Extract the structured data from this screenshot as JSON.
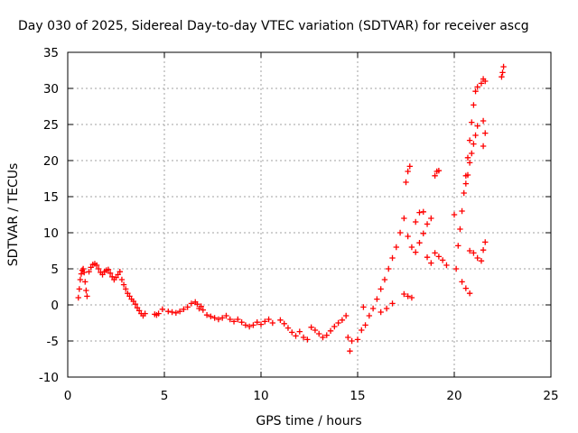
{
  "chart_data": {
    "type": "scatter",
    "title": "Day 030 of 2025, Sidereal Day-to-day VTEC variation (SDTVAR) for receiver ascg",
    "xlabel": "GPS time / hours",
    "ylabel": "SDTVAR / TECUs",
    "xlim": [
      0,
      25
    ],
    "ylim": [
      -10,
      35
    ],
    "xticks": [
      "0",
      "5",
      "10",
      "15",
      "20",
      "25"
    ],
    "yticks": [
      "-10",
      "-5",
      "0",
      "5",
      "10",
      "15",
      "20",
      "25",
      "30",
      "35"
    ],
    "grid": true,
    "marker": "+",
    "series": [
      {
        "name": "SDTVAR",
        "color": "#ff0000",
        "points": [
          [
            0.55,
            1.0
          ],
          [
            0.6,
            2.2
          ],
          [
            0.65,
            3.5
          ],
          [
            0.7,
            4.3
          ],
          [
            0.75,
            4.8
          ],
          [
            0.8,
            5.0
          ],
          [
            0.85,
            4.5
          ],
          [
            0.9,
            3.2
          ],
          [
            0.95,
            2.0
          ],
          [
            1.0,
            1.2
          ],
          [
            1.1,
            4.6
          ],
          [
            1.2,
            5.2
          ],
          [
            1.3,
            5.6
          ],
          [
            1.4,
            5.7
          ],
          [
            1.5,
            5.5
          ],
          [
            1.6,
            5.0
          ],
          [
            1.7,
            4.5
          ],
          [
            1.8,
            4.2
          ],
          [
            1.9,
            4.6
          ],
          [
            2.0,
            4.8
          ],
          [
            2.1,
            4.9
          ],
          [
            2.2,
            4.4
          ],
          [
            2.3,
            3.9
          ],
          [
            2.4,
            3.5
          ],
          [
            2.5,
            3.8
          ],
          [
            2.6,
            4.2
          ],
          [
            2.7,
            4.6
          ],
          [
            2.8,
            3.5
          ],
          [
            2.9,
            2.8
          ],
          [
            3.0,
            2.2
          ],
          [
            3.1,
            1.6
          ],
          [
            3.2,
            1.2
          ],
          [
            3.3,
            0.8
          ],
          [
            3.4,
            0.5
          ],
          [
            3.5,
            0.1
          ],
          [
            3.6,
            -0.4
          ],
          [
            3.7,
            -0.8
          ],
          [
            3.8,
            -1.2
          ],
          [
            3.9,
            -1.5
          ],
          [
            4.0,
            -1.2
          ],
          [
            4.5,
            -1.3
          ],
          [
            4.6,
            -1.4
          ],
          [
            4.7,
            -1.2
          ],
          [
            4.9,
            -0.6
          ],
          [
            5.2,
            -0.9
          ],
          [
            5.4,
            -1.0
          ],
          [
            5.6,
            -1.1
          ],
          [
            5.8,
            -0.9
          ],
          [
            6.0,
            -0.6
          ],
          [
            6.2,
            -0.3
          ],
          [
            6.4,
            0.2
          ],
          [
            6.6,
            0.4
          ],
          [
            6.7,
            0.1
          ],
          [
            6.8,
            -0.5
          ],
          [
            6.9,
            -0.2
          ],
          [
            7.0,
            -0.7
          ],
          [
            7.2,
            -1.4
          ],
          [
            7.4,
            -1.6
          ],
          [
            7.6,
            -1.8
          ],
          [
            7.8,
            -2.0
          ],
          [
            8.0,
            -1.8
          ],
          [
            8.2,
            -1.5
          ],
          [
            8.4,
            -2.0
          ],
          [
            8.6,
            -2.3
          ],
          [
            8.8,
            -2.0
          ],
          [
            9.0,
            -2.4
          ],
          [
            9.2,
            -2.8
          ],
          [
            9.4,
            -3.0
          ],
          [
            9.6,
            -2.8
          ],
          [
            9.8,
            -2.4
          ],
          [
            10.0,
            -2.7
          ],
          [
            10.2,
            -2.3
          ],
          [
            10.4,
            -2.0
          ],
          [
            10.6,
            -2.5
          ],
          [
            11.0,
            -2.1
          ],
          [
            11.2,
            -2.6
          ],
          [
            11.4,
            -3.2
          ],
          [
            11.6,
            -3.8
          ],
          [
            11.8,
            -4.3
          ],
          [
            12.0,
            -3.7
          ],
          [
            12.2,
            -4.5
          ],
          [
            12.4,
            -4.8
          ],
          [
            12.6,
            -3.1
          ],
          [
            12.8,
            -3.5
          ],
          [
            13.0,
            -4.0
          ],
          [
            13.2,
            -4.5
          ],
          [
            13.4,
            -4.2
          ],
          [
            13.6,
            -3.6
          ],
          [
            13.8,
            -3.0
          ],
          [
            14.0,
            -2.5
          ],
          [
            14.2,
            -2.1
          ],
          [
            14.4,
            -1.5
          ],
          [
            14.5,
            -4.5
          ],
          [
            14.6,
            -6.4
          ],
          [
            14.7,
            -5.0
          ],
          [
            15.0,
            -4.8
          ],
          [
            15.2,
            -3.5
          ],
          [
            15.3,
            -0.3
          ],
          [
            15.4,
            -2.8
          ],
          [
            15.6,
            -1.5
          ],
          [
            15.8,
            -0.5
          ],
          [
            16.0,
            0.8
          ],
          [
            16.2,
            2.2
          ],
          [
            16.4,
            3.5
          ],
          [
            16.6,
            5.0
          ],
          [
            16.8,
            6.5
          ],
          [
            17.0,
            8.0
          ],
          [
            17.2,
            10.0
          ],
          [
            17.4,
            12.0
          ],
          [
            17.5,
            17.0
          ],
          [
            17.6,
            18.5
          ],
          [
            17.7,
            19.2
          ],
          [
            17.6,
            9.5
          ],
          [
            17.8,
            8.0
          ],
          [
            18.0,
            11.5
          ],
          [
            18.2,
            12.8
          ],
          [
            18.4,
            12.9
          ],
          [
            18.0,
            7.3
          ],
          [
            18.2,
            8.6
          ],
          [
            18.4,
            9.9
          ],
          [
            18.6,
            11.2
          ],
          [
            18.8,
            12.0
          ],
          [
            18.6,
            6.6
          ],
          [
            18.8,
            5.8
          ],
          [
            19.0,
            7.2
          ],
          [
            19.2,
            6.7
          ],
          [
            19.4,
            6.2
          ],
          [
            19.6,
            5.5
          ],
          [
            19.0,
            17.9
          ],
          [
            19.1,
            18.5
          ],
          [
            19.2,
            18.6
          ],
          [
            20.0,
            12.5
          ],
          [
            20.1,
            5.0
          ],
          [
            20.2,
            8.2
          ],
          [
            20.3,
            10.5
          ],
          [
            20.4,
            13.0
          ],
          [
            20.5,
            15.5
          ],
          [
            20.6,
            17.9
          ],
          [
            20.7,
            20.4
          ],
          [
            20.8,
            22.8
          ],
          [
            20.9,
            25.3
          ],
          [
            21.0,
            27.7
          ],
          [
            21.1,
            29.6
          ],
          [
            21.2,
            30.2
          ],
          [
            20.6,
            16.8
          ],
          [
            20.7,
            18.0
          ],
          [
            20.8,
            19.7
          ],
          [
            20.9,
            21.0
          ],
          [
            21.0,
            22.3
          ],
          [
            21.1,
            23.5
          ],
          [
            21.2,
            24.8
          ],
          [
            20.8,
            7.5
          ],
          [
            21.0,
            7.2
          ],
          [
            21.2,
            6.5
          ],
          [
            21.4,
            6.1
          ],
          [
            21.5,
            7.6
          ],
          [
            21.6,
            8.7
          ],
          [
            21.4,
            30.7
          ],
          [
            21.5,
            31.3
          ],
          [
            21.6,
            31.0
          ],
          [
            21.5,
            25.5
          ],
          [
            21.6,
            23.8
          ],
          [
            21.5,
            22.0
          ],
          [
            20.4,
            3.2
          ],
          [
            20.6,
            2.3
          ],
          [
            20.8,
            1.6
          ],
          [
            17.8,
            1.0
          ],
          [
            17.6,
            1.2
          ],
          [
            17.4,
            1.5
          ],
          [
            16.8,
            0.2
          ],
          [
            16.5,
            -0.5
          ],
          [
            16.2,
            -1.0
          ],
          [
            22.5,
            32.2
          ],
          [
            22.55,
            33.0
          ],
          [
            22.45,
            31.6
          ]
        ]
      }
    ]
  }
}
